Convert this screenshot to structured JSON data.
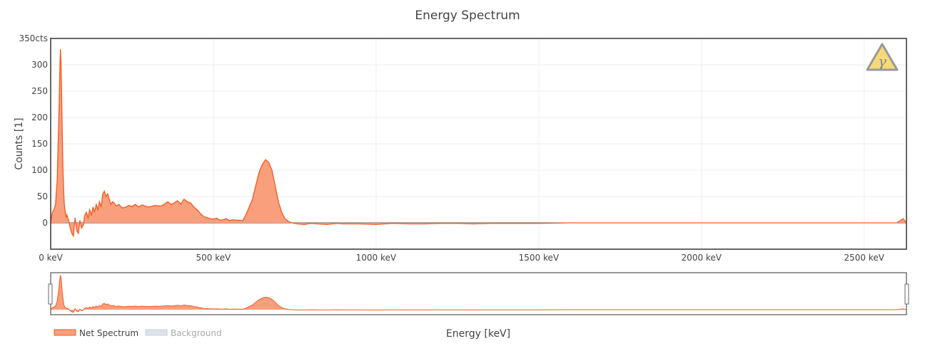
{
  "chart_data": {
    "type": "area",
    "title": "Energy Spectrum",
    "xlabel": "Energy [keV]",
    "ylabel": "Counts [1]",
    "xlim": [
      0,
      2630
    ],
    "ylim": [
      -50,
      350
    ],
    "x_ticks": [
      {
        "value": 0,
        "label": "0 keV"
      },
      {
        "value": 500,
        "label": "500 keV"
      },
      {
        "value": 1000,
        "label": "1000 keV"
      },
      {
        "value": 1500,
        "label": "1500 keV"
      },
      {
        "value": 2000,
        "label": "2000 keV"
      },
      {
        "value": 2500,
        "label": "2500 keV"
      }
    ],
    "y_ticks": [
      {
        "value": 350,
        "label": "350cts"
      },
      {
        "value": 300,
        "label": "300"
      },
      {
        "value": 250,
        "label": "250"
      },
      {
        "value": 200,
        "label": "200"
      },
      {
        "value": 150,
        "label": "150"
      },
      {
        "value": 100,
        "label": "100"
      },
      {
        "value": 50,
        "label": "50"
      },
      {
        "value": 0,
        "label": "0"
      }
    ],
    "grid": true,
    "legend_position": "bottom-left",
    "series": [
      {
        "name": "Net Spectrum",
        "color": "#f05a22",
        "fill": "#fa9f7c",
        "visible": true,
        "x": [
          0,
          5,
          10,
          15,
          20,
          25,
          28,
          30,
          32,
          34,
          36,
          38,
          40,
          42,
          45,
          48,
          50,
          55,
          60,
          65,
          70,
          75,
          80,
          85,
          90,
          95,
          100,
          105,
          110,
          115,
          120,
          125,
          130,
          135,
          140,
          145,
          150,
          155,
          160,
          165,
          170,
          175,
          180,
          185,
          190,
          195,
          200,
          210,
          220,
          230,
          240,
          250,
          260,
          270,
          280,
          300,
          320,
          340,
          350,
          360,
          370,
          380,
          390,
          400,
          410,
          420,
          430,
          440,
          450,
          460,
          470,
          480,
          490,
          500,
          510,
          520,
          530,
          540,
          550,
          560,
          570,
          580,
          590,
          600,
          610,
          620,
          630,
          640,
          650,
          660,
          670,
          680,
          690,
          700,
          710,
          720,
          730,
          740,
          760,
          780,
          800,
          820,
          850,
          880,
          900,
          950,
          1000,
          1050,
          1100,
          1150,
          1200,
          1250,
          1300,
          1350,
          1400,
          1450,
          1500,
          1600,
          1700,
          1800,
          1900,
          2000,
          2100,
          2200,
          2300,
          2400,
          2500,
          2600,
          2620,
          2630
        ],
        "values": [
          0,
          20,
          25,
          35,
          80,
          200,
          290,
          330,
          300,
          230,
          160,
          100,
          60,
          35,
          20,
          10,
          15,
          5,
          -10,
          -20,
          -25,
          10,
          -15,
          -20,
          5,
          -10,
          -5,
          15,
          20,
          10,
          25,
          15,
          30,
          20,
          35,
          25,
          40,
          30,
          55,
          60,
          50,
          55,
          45,
          35,
          40,
          38,
          32,
          35,
          28,
          30,
          33,
          31,
          35,
          30,
          34,
          30,
          33,
          32,
          36,
          40,
          35,
          38,
          42,
          36,
          45,
          40,
          38,
          30,
          25,
          18,
          12,
          10,
          8,
          7,
          9,
          5,
          6,
          8,
          4,
          6,
          5,
          5,
          4,
          15,
          30,
          45,
          70,
          95,
          110,
          120,
          115,
          100,
          70,
          40,
          20,
          8,
          3,
          0,
          -2,
          -3,
          -1,
          -2,
          -3,
          -1,
          -2,
          -2,
          -3,
          -1,
          -2,
          -2,
          -1,
          -1,
          -2,
          -1,
          -1,
          -1,
          -1,
          0,
          0,
          0,
          0,
          0,
          0,
          0,
          0,
          0,
          0,
          0,
          8,
          0
        ]
      },
      {
        "name": "Background",
        "color": "#c8d0da",
        "fill": "#dde3ea",
        "visible": false,
        "values": []
      }
    ],
    "annotation_icon": "gamma-warning-icon",
    "icon_color": "#f5d97a"
  }
}
